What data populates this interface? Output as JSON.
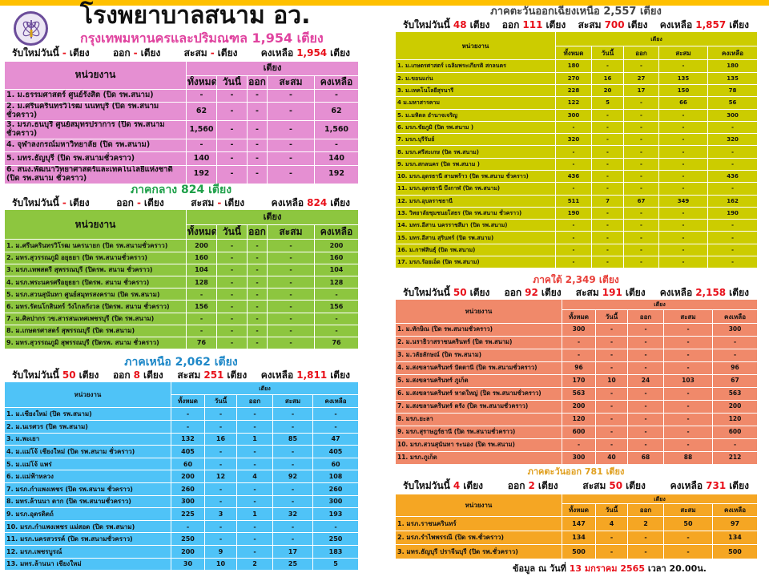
{
  "header": {
    "title": "โรงพยาบาลสนาม อว.",
    "accent_color": "#ffc000"
  },
  "labels": {
    "new_today": "รับใหม่วันนี้",
    "beds": "เตียง",
    "out": "ออก",
    "cumulative": "สะสม",
    "remaining": "คงเหลือ"
  },
  "table_headers": {
    "unit": "หน่วยงาน",
    "beds": "เตียง",
    "cols": [
      "ทั้งหมด",
      "วันนี้",
      "ออก",
      "สะสม",
      "คงเหลือ"
    ]
  },
  "regions": {
    "bangkok": {
      "title": "กรุงเทพมหานครและปริมณฑล  1,954 เตียง",
      "color": "#e58fd2",
      "title_color": "#e0439f",
      "summary": {
        "new": "-",
        "out": "-",
        "cumulative": "-",
        "remaining": "1,954"
      },
      "rows": [
        [
          "1. ม.ธรรมศาสตร์ ศูนย์รังสิต (ปิด รพ.สนาม)",
          "-",
          "-",
          "-",
          "-",
          "-"
        ],
        [
          "2. ม.ศรีนครินทรวิโรฒ นนทบุรี (ปิด รพ.สนามชั่วคราว)",
          "62",
          "-",
          "-",
          "-",
          "62"
        ],
        [
          "3. มรภ.ธนบุรี ศูนย์สมุทรปราการ (ปิด รพ.สนามชั่วคราว)",
          "1,560",
          "-",
          "-",
          "-",
          "1,560"
        ],
        [
          "4. จุฬาลงกรณ์มหาวิทยาลัย  (ปิด รพ.สนาม)",
          "-",
          "-",
          "-",
          "-",
          "-"
        ],
        [
          "5. มทร.ธัญบุรี (ปิด รพ.สนามชั่วคราว)",
          "140",
          "-",
          "-",
          "-",
          "140"
        ],
        [
          "6. สนง.พัฒนาวิทยาศาสตร์และเทคโนโลยีแห่งชาติ (ปิด รพ.สนาม ชั่วคราว)",
          "192",
          "-",
          "-",
          "-",
          "192"
        ]
      ]
    },
    "central": {
      "title": "ภาคกลาง 824 เตียง",
      "color": "#8dc63f",
      "title_color": "#1fa04a",
      "summary": {
        "new": "-",
        "out": "-",
        "cumulative": "-",
        "remaining": "824"
      },
      "rows": [
        [
          "1. ม.ศรีนครินทรวิโรฒ นครนายก  (ปิด รพ.สนามชั่วคราว)",
          "200",
          "-",
          "-",
          "-",
          "200"
        ],
        [
          "2. มทร.สุวรรณภูมิ อยุธยา  (ปิด รพ.สนามชั่วคราว)",
          "160",
          "-",
          "-",
          "-",
          "160"
        ],
        [
          "3. มรภ.เทพสตรี สุพรรณบุรี (ปิดรพ. สนาม ชั่วคราว)",
          "104",
          "-",
          "-",
          "-",
          "104"
        ],
        [
          "4. มรภ.พระนครศรีอยุธยา  (ปิดรพ. สนาม ชั่วคราว)",
          "128",
          "-",
          "-",
          "-",
          "128"
        ],
        [
          "5. มรภ.สวนสุนันทา ศูนย์สมุทรสงคราม  (ปิด รพ.สนาม)",
          "-",
          "-",
          "-",
          "-",
          "-"
        ],
        [
          "6. มทร.รัตนโกสินทร์ วังไกลกังวล (ปิดรพ. สนาม ชั่วคราว)",
          "156",
          "-",
          "-",
          "-",
          "156"
        ],
        [
          "7. ม.ศิลปากร วข.สารสนเทศเพชรบุรี  (ปิด รพ.สนาม)",
          "-",
          "-",
          "-",
          "-",
          "-"
        ],
        [
          "8. ม.เกษตรศาสตร์  สุพรรณบุรี  (ปิด รพ.สนาม)",
          "-",
          "-",
          "-",
          "-",
          "-"
        ],
        [
          "9. มทร.สุวรรณภูมิ  สุพรรณบุรี  (ปิดรพ. สนาม ชั่วคราว)",
          "76",
          "-",
          "-",
          "-",
          "76"
        ]
      ]
    },
    "north": {
      "title": "ภาคเหนือ 2,062 เตียง",
      "color": "#4fc3f7",
      "title_color": "#1e88c8",
      "summary": {
        "new": "50",
        "out": "8",
        "cumulative": "251",
        "remaining": "1,811"
      },
      "rows": [
        [
          "1. ม.เชียงใหม่  (ปิด รพ.สนาม)",
          "-",
          "-",
          "-",
          "-",
          "-"
        ],
        [
          "2. ม.นเรศวร (ปิด รพ.สนาม)",
          "-",
          "-",
          "-",
          "-",
          "-"
        ],
        [
          "3. ม.พะเยา",
          "132",
          "16",
          "1",
          "85",
          "47"
        ],
        [
          "4. ม.แม่โจ้ เชียงใหม่ (ปิด รพ.สนาม ชั่วคราว)",
          "405",
          "-",
          "-",
          "-",
          "405"
        ],
        [
          "5. ม.แม่โจ้ แพร่",
          "60",
          "-",
          "-",
          "-",
          "60"
        ],
        [
          "6. ม.แม่ฟ้าหลวง",
          "200",
          "12",
          "4",
          "92",
          "108"
        ],
        [
          "7. มรภ.กำแพงเพชร (ปิด รพ.สนาม ชั่วคราว)",
          "260",
          "-",
          "-",
          "-",
          "260"
        ],
        [
          "8. มทร.ล้านนา ตาก  (ปิด รพ.สนามชั่วคราว)",
          "300",
          "-",
          "-",
          "-",
          "300"
        ],
        [
          "9. มรภ.อุตรดิตถ์",
          "225",
          "3",
          "1",
          "32",
          "193"
        ],
        [
          "10. มรภ.กำแพงเพชร แม่สอด  (ปิด รพ.สนาม)",
          "-",
          "-",
          "-",
          "-",
          "-"
        ],
        [
          "11. มรภ.นครสวรรค์  (ปิด รพ.สนามชั่วคราว)",
          "250",
          "-",
          "-",
          "-",
          "250"
        ],
        [
          "12. มรภ.เพชรบูรณ์",
          "200",
          "9",
          "-",
          "17",
          "183"
        ],
        [
          "13. มทร.ล้านนา เชียงใหม่",
          "30",
          "10",
          "2",
          "25",
          "5"
        ]
      ]
    },
    "northeast": {
      "title": "ภาคตะวันออกเฉียงเหนือ  2,557 เตียง",
      "color": "#cccc00",
      "title_color": "#444444",
      "summary": {
        "new": "48",
        "out": "111",
        "cumulative": "700",
        "remaining": "1,857"
      },
      "rows": [
        [
          "1. ม.เกษตรศาสตร์ เฉลิมพระเกียรติ สกลนคร",
          "180",
          "-",
          "-",
          "-",
          "180"
        ],
        [
          "2. ม.ขอนแก่น",
          "270",
          "16",
          "27",
          "135",
          "135"
        ],
        [
          "3. ม.เทคโนโลยีสุรนารี",
          "228",
          "20",
          "17",
          "150",
          "78"
        ],
        [
          "4 ม.มหาสารคาม",
          "122",
          "5",
          "-",
          "66",
          "56"
        ],
        [
          "5. ม.มหิดล  อำนาจเจริญ",
          "300",
          "-",
          "-",
          "-",
          "300"
        ],
        [
          "6. มรภ.ชัยภูมิ   (ปิด รพ.สนาม )",
          "-",
          "-",
          "-",
          "-",
          "-"
        ],
        [
          "7. มรภ.บุรีรัมย์",
          "320",
          "-",
          "-",
          "-",
          "320"
        ],
        [
          "8. มรภ.ศรีสะเกษ  (ปิด รพ.สนาม)",
          "-",
          "-",
          "-",
          "-",
          "-"
        ],
        [
          "9. มรภ.สกลนคร  (ปิด รพ.สนาม )",
          "-",
          "-",
          "-",
          "-",
          "-"
        ],
        [
          "10. มรภ.อุดรธานี  สามพร้าว (ปิด รพ.สนาม ชั่วคราว)",
          "436",
          "-",
          "-",
          "-",
          "436"
        ],
        [
          "11. มรภ.อุดรธานี  บึงกาฬ  (ปิด รพ.สนาม)",
          "-",
          "-",
          "-",
          "-",
          "-"
        ],
        [
          "12. มรภ.อุบลราชธานี",
          "511",
          "7",
          "67",
          "349",
          "162"
        ],
        [
          "13. วิทยาลัยชุมชนยโสธร  (ปิด รพ.สนาม ชั่วคราว)",
          "190",
          "-",
          "-",
          "-",
          "190"
        ],
        [
          "14. มทร.อีสาน  นครราชสีมา  (ปิด รพ.สนาม)",
          "-",
          "-",
          "-",
          "-",
          "-"
        ],
        [
          "15. มทร.อีสาน  สุรินทร์  (ปิด รพ.สนาม)",
          "-",
          "-",
          "-",
          "-",
          "-"
        ],
        [
          "16. ม.กาฬสินธุ์  (ปิด รพ.สนาม)",
          "-",
          "-",
          "-",
          "-",
          "-"
        ],
        [
          "17. มรภ.ร้อยเอ็ด  (ปิด รพ.สนาม)",
          "-",
          "-",
          "-",
          "-",
          "-"
        ]
      ]
    },
    "south": {
      "title": "ภาคใต้ 2,349 เตียง",
      "color": "#f0896a",
      "title_color": "#e8403a",
      "summary": {
        "new": "50",
        "out": "92",
        "cumulative": "191",
        "remaining": "2,158"
      },
      "rows": [
        [
          "1. ม.ทักษิณ (ปิด รพ.สนามชั่วคราว)",
          "300",
          "-",
          "-",
          "-",
          "300"
        ],
        [
          "2. ม.นราธิวาสราชนครินทร์ (ปิด รพ.สนาม)",
          "-",
          "-",
          "-",
          "-",
          "-"
        ],
        [
          "3. ม.วลัยลักษณ์ (ปิด รพ.สนาม)",
          "-",
          "-",
          "-",
          "-",
          "-"
        ],
        [
          "4. ม.สงขลานครินทร์ ปัตตานี (ปิด รพ.สนามชั่วคราว)",
          "96",
          "-",
          "-",
          "-",
          "96"
        ],
        [
          "5. ม.สงขลานครินทร์ ภูเก็ต",
          "170",
          "10",
          "24",
          "103",
          "67"
        ],
        [
          "6. ม.สงขลานครินทร์ หาดใหญ่ (ปิด รพ.สนามชั่วคราว)",
          "563",
          "-",
          "-",
          "-",
          "563"
        ],
        [
          "7. ม.สงขลานครินทร์ ตรัง  (ปิด รพ.สนามชั่วคราว)",
          "200",
          "-",
          "-",
          "-",
          "200"
        ],
        [
          "8. มรภ.ยะลา",
          "120",
          "-",
          "-",
          "-",
          "120"
        ],
        [
          "9. มรภ.สุราษฎร์ธานี  (ปิด รพ.สนามชั่วคราว)",
          "600",
          "-",
          "-",
          "-",
          "600"
        ],
        [
          "10. มรภ.สวนสุนันทา ระนอง (ปิด รพ.สนาม)",
          "-",
          "-",
          "-",
          "-",
          "-"
        ],
        [
          "11. มรภ.ภูเก็ต",
          "300",
          "40",
          "68",
          "88",
          "212"
        ]
      ]
    },
    "east": {
      "title": "ภาคตะวันออก 781 เตียง",
      "color": "#f5a623",
      "title_color": "#e0a020",
      "summary": {
        "new": "4",
        "out": "2",
        "cumulative": "50",
        "remaining": "731"
      },
      "rows": [
        [
          "1. มรภ.ราชนครินทร์",
          "147",
          "4",
          "2",
          "50",
          "97"
        ],
        [
          "2. มรภ.รำไพพรรณี (ปิด รพ.ชั่วคราว)",
          "134",
          "-",
          "-",
          "-",
          "134"
        ],
        [
          "3. มทร.ธัญบุรี  ปราจีนบุรี  (ปิด รพ.ชั่วคราว)",
          "500",
          "-",
          "-",
          "-",
          "500"
        ]
      ]
    }
  },
  "footer": {
    "prefix": "ข้อมูล ณ วันที่",
    "date": "13 มกราคม 2565",
    "time": "เวลา 20.00น."
  }
}
